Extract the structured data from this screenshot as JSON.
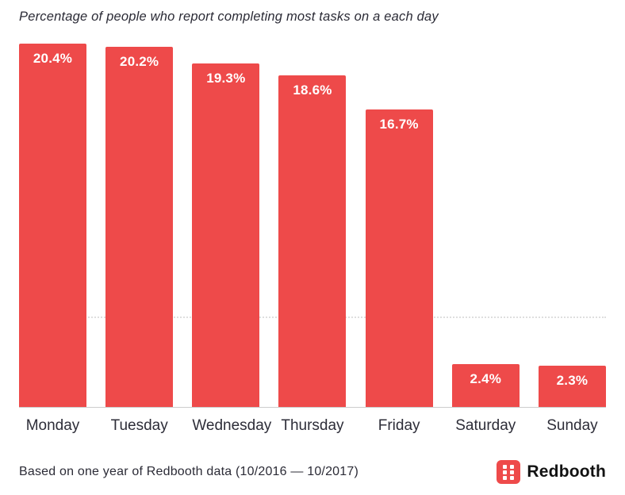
{
  "title": "Percentage of people who report completing most tasks on a each day",
  "footer": {
    "source": "Based on one year of Redbooth data (10/2016 — 10/2017)",
    "brand": "Redbooth"
  },
  "colors": {
    "bar": "#ee4a4a",
    "value_label": "#ffffff",
    "text": "#2d2d38",
    "axis": "#cccccc",
    "grid": "#dedede",
    "brand_red": "#ee4a4a"
  },
  "chart_data": {
    "type": "bar",
    "categories": [
      "Monday",
      "Tuesday",
      "Wednesday",
      "Thursday",
      "Friday",
      "Saturday",
      "Sunday"
    ],
    "values": [
      20.4,
      20.2,
      19.3,
      18.6,
      16.7,
      2.4,
      2.3
    ],
    "value_labels": [
      "20.4%",
      "20.2%",
      "19.3%",
      "18.6%",
      "16.7%",
      "2.4%",
      "2.3%"
    ],
    "title": "Percentage of people who report completing most tasks on a each day",
    "xlabel": "",
    "ylabel": "",
    "ylim": [
      0,
      20.4
    ],
    "gridlines": [
      5
    ],
    "grid_style": "dotted",
    "legend": "none",
    "bar_color": "#ee4a4a",
    "value_label_position": "inside-top"
  }
}
